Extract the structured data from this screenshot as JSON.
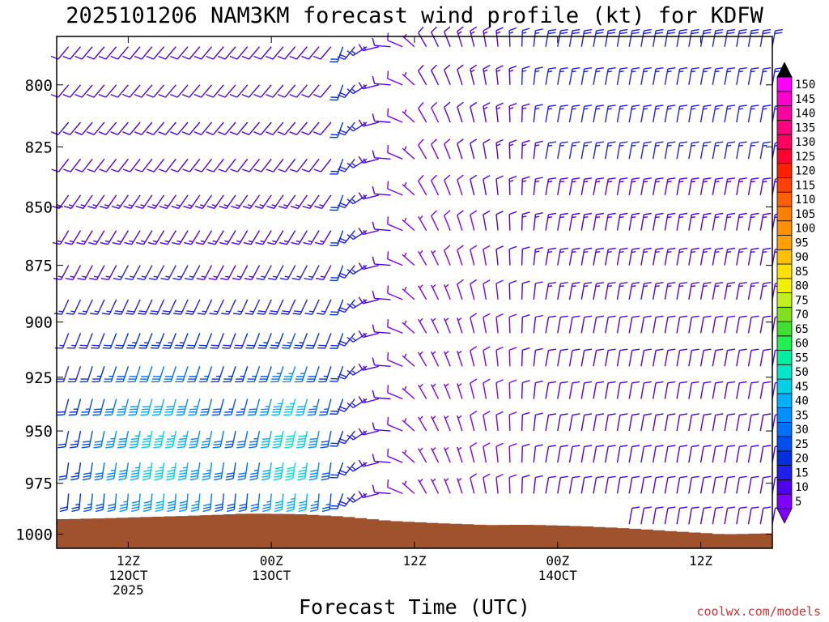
{
  "chart_data": {
    "type": "wind-barb time-height profile",
    "title": "2025101206 NAM3KM forecast wind profile (kt) for KDFW",
    "xlabel": "Forecast Time (UTC)",
    "ylabel": "",
    "units": "kt",
    "y_axis": {
      "scale": "log-pressure (hPa), reversed",
      "range": [
        1007,
        781
      ],
      "ticks": [
        "800",
        "825",
        "850",
        "875",
        "900",
        "925",
        "950",
        "975",
        "1000"
      ]
    },
    "x_axis": {
      "range_hours": [
        0,
        60
      ],
      "ticks": [
        {
          "hour": 6,
          "lines": [
            "12Z",
            "12OCT",
            "2025"
          ]
        },
        {
          "hour": 18,
          "lines": [
            "00Z",
            "13OCT"
          ]
        },
        {
          "hour": 30,
          "lines": [
            "12Z"
          ]
        },
        {
          "hour": 42,
          "lines": [
            "00Z",
            "14OCT"
          ]
        },
        {
          "hour": 54,
          "lines": [
            "12Z"
          ]
        }
      ]
    },
    "barb_grid": {
      "hours_from": 1,
      "hours_to": 60,
      "hour_step": 1,
      "levels_hpa": [
        785,
        800,
        815,
        830,
        845,
        860,
        875,
        890,
        905,
        920,
        935,
        950,
        965,
        980,
        995
      ]
    },
    "terrain_surface_pressure_hpa": [
      [
        0,
        992.6
      ],
      [
        4,
        992.1
      ],
      [
        8,
        991.4
      ],
      [
        12,
        990.7
      ],
      [
        16,
        989.8
      ],
      [
        20,
        990.0
      ],
      [
        24,
        991.2
      ],
      [
        28,
        993.4
      ],
      [
        32,
        994.5
      ],
      [
        36,
        995.4
      ],
      [
        40,
        995.3
      ],
      [
        44,
        996.0
      ],
      [
        48,
        997.1
      ],
      [
        52,
        998.6
      ],
      [
        56,
        1000.0
      ],
      [
        60,
        999.5
      ]
    ],
    "colorbar": {
      "labels": [
        "5",
        "10",
        "15",
        "20",
        "25",
        "30",
        "35",
        "40",
        "45",
        "50",
        "55",
        "60",
        "65",
        "70",
        "75",
        "80",
        "85",
        "90",
        "95",
        "100",
        "105",
        "110",
        "115",
        "120",
        "125",
        "130",
        "135",
        "140",
        "145",
        "150"
      ],
      "colors": [
        "#8000ff",
        "#5000ee",
        "#2020ee",
        "#0030e0",
        "#0050f0",
        "#0070ff",
        "#0090ff",
        "#00b0ff",
        "#00d0e8",
        "#00e8c8",
        "#00f0a0",
        "#20f050",
        "#40e030",
        "#80e020",
        "#c0f020",
        "#f0f000",
        "#ffe000",
        "#ffc000",
        "#ffa000",
        "#ff9000",
        "#ff8000",
        "#ff6000",
        "#ff4000",
        "#ff2000",
        "#ff0030",
        "#ff0060",
        "#ff0080",
        "#ff00a0",
        "#ff00d0",
        "#ff00ff"
      ],
      "end_triangles": [
        "#8000ff",
        "#000000"
      ]
    },
    "terrain_color": "#a0522d",
    "credit": "coolwx.com/models"
  }
}
